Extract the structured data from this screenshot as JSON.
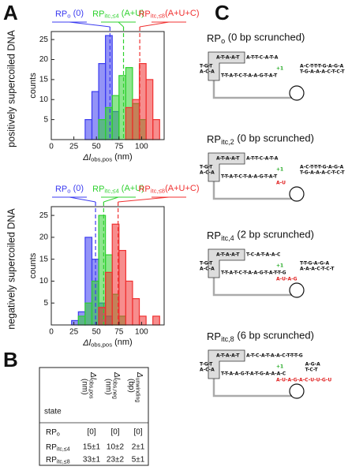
{
  "panel_labels": [
    "A",
    "B",
    "C"
  ],
  "chart_data": [
    {
      "type": "histogram",
      "side_label": "positively supercoiled DNA",
      "ylabel": "counts",
      "xlabel": {
        "text": "Δl",
        "sub": "obs,pos",
        "tail": " (nm)"
      },
      "xlim": [
        0,
        125
      ],
      "ylim": [
        0,
        27
      ],
      "xticks": [
        0,
        25,
        50,
        75,
        100
      ],
      "yticks": [
        5,
        10,
        15,
        20,
        25
      ],
      "series": [
        {
          "name": {
            "text": "RP",
            "sub": "o",
            "tail": " (0)"
          },
          "color": "#3b3bf0",
          "mean": 65,
          "bins": [
            37.5,
            45,
            52.5,
            60,
            67.5,
            75
          ],
          "values": [
            5,
            12,
            19,
            26,
            7
          ]
        },
        {
          "name": {
            "text": "RP",
            "sub": "itc,≤4",
            "tail": " (A+U)"
          },
          "color": "#2fd12f",
          "mean": 80,
          "bins": [
            52.5,
            60,
            67.5,
            75,
            82.5,
            90,
            97.5,
            105
          ],
          "values": [
            5,
            8,
            11,
            16,
            18,
            9,
            5
          ]
        },
        {
          "name": {
            "text": "RP",
            "sub": "itc,≤8",
            "tail": "(A+U+C)"
          },
          "color": "#f03030",
          "mean": 98,
          "bins": [
            82.5,
            90,
            97.5,
            105,
            112.5,
            120
          ],
          "values": [
            8,
            10,
            19,
            15,
            5
          ]
        }
      ]
    },
    {
      "type": "histogram",
      "side_label": "negatively supercoiled DNA",
      "ylabel": "counts",
      "xlabel": {
        "text": "Δl",
        "sub": "obs,pos",
        "tail": " (nm)"
      },
      "xlim": [
        0,
        125
      ],
      "ylim": [
        0,
        27
      ],
      "xticks": [
        0,
        25,
        50,
        75,
        100
      ],
      "yticks": [
        5,
        10,
        15,
        20,
        25
      ],
      "series": [
        {
          "name": {
            "text": "RP",
            "sub": "o",
            "tail": " (0)"
          },
          "color": "#3b3bf0",
          "mean": 49,
          "bins": [
            22.5,
            30,
            37.5,
            45,
            52.5,
            60,
            67.5
          ],
          "values": [
            1,
            3,
            20,
            15,
            5,
            2
          ]
        },
        {
          "name": {
            "text": "RP",
            "sub": "itc,≤4",
            "tail": " (A+U)"
          },
          "color": "#2fd12f",
          "mean": 58,
          "bins": [
            30,
            37.5,
            45,
            52.5,
            60,
            67.5,
            75,
            82.5
          ],
          "values": [
            2,
            5,
            10,
            25,
            16,
            7,
            2
          ]
        },
        {
          "name": {
            "text": "RP",
            "sub": "itc,≤8",
            "tail": "(A+U+C)"
          },
          "color": "#f03030",
          "mean": 74,
          "bins": [
            52.5,
            60,
            67.5,
            75,
            82.5,
            90,
            97.5,
            105,
            112.5,
            120
          ],
          "values": [
            4,
            12,
            23,
            17,
            10,
            6,
            2,
            0,
            2
          ]
        }
      ]
    }
  ],
  "table": {
    "header": [
      {
        "line1": "state"
      },
      {
        "line1": {
          "text": "Δl",
          "sub": "obs,pos"
        },
        "line2": "(nm)"
      },
      {
        "line1": {
          "text": "Δl",
          "sub": "obs,neg"
        },
        "line2": "(nm)"
      },
      {
        "line1": {
          "text": "Δ",
          "sub": "unwinding"
        },
        "line2": "(bp)"
      }
    ],
    "rows": [
      [
        {
          "text": "RP",
          "sub": "o"
        },
        "[0]",
        "[0]",
        "[0]"
      ],
      [
        {
          "text": "RP",
          "sub": "itc,≤4"
        },
        "15±1",
        "10±2",
        "2±1"
      ],
      [
        {
          "text": "RP",
          "sub": "itc,≤8"
        },
        "33±1",
        "23±2",
        "5±1"
      ]
    ]
  },
  "diagrams": [
    {
      "title": {
        "text": "RP",
        "sub": "o",
        "tail": " (0 bp scrunched)"
      },
      "left_top": "T-G-T",
      "left_bottom": "A-C-A",
      "box": "A-T-A-A-T",
      "mid": "A-T-T-C-A-T-A",
      "down_top": "A-C-T-T-T-G-A-G-A",
      "down_bottom": "T-G-A-A-A-C-T-C-T",
      "template": "T-T-A-T-C-T-A-A-G-T-A-T",
      "plus1": "+1"
    },
    {
      "title": {
        "text": "RP",
        "sub": "itc,2",
        "tail": " (0 bp scrunched)"
      },
      "left_top": "T-G-T",
      "left_bottom": "A-C-A",
      "box": "A-T-A-A-T",
      "mid": "A-T-T-C-A-T-A",
      "down_top": "A-C-T-T-T-G-A-G-A",
      "down_bottom": "T-G-A-A-A-C-T-C-T",
      "template": "T-T-A-T-C-T-A-A-G-T-A-T",
      "plus1": "+1",
      "rna": "A-U"
    },
    {
      "title": {
        "text": "RP",
        "sub": "itc,4",
        "tail": " (2 bp scrunched)"
      },
      "left_top": "T-G-T",
      "left_bottom": "A-C-A",
      "box": "A-T-A-A-T",
      "mid": "T-C-A-T-A-A-C",
      "down_top": "T-T-G-A-G-A",
      "down_bottom": "A-A-A-C-T-C-T",
      "template": "T-T-A-T-C-T-A-A-G-T-A-T-T-G",
      "plus1": "+1",
      "rna": "A-U-A-G"
    },
    {
      "title": {
        "text": "RP",
        "sub": "itc,8",
        "tail": " (6 bp scrunched)"
      },
      "left_top": "T-G-T",
      "left_bottom": "A-C-A",
      "box": "A-T-A-A-T",
      "mid": "A-T-C-A-T-A-A-C-T-T-T-G",
      "down_top": "A-G-A",
      "down_bottom": "T-C-T",
      "template": "T-T-A-A-G-T-A-T-G-A-A-A-C",
      "plus1": "+1",
      "rna": "A-U-A-G-A-C-U-U-G-U"
    }
  ]
}
